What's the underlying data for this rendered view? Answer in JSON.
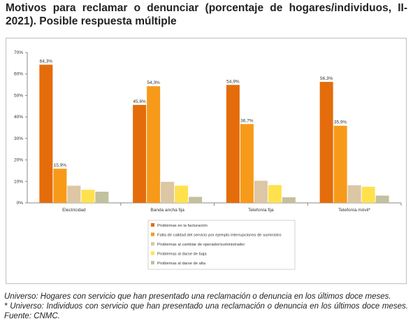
{
  "title": "Motivos para reclamar o denunciar (porcentaje de hogares/individuos, II-2021). Posible respuesta múltiple",
  "notes": {
    "universe": "Universo: Hogares con servicio que han presentado una reclamación o denuncia en los últimos doce meses.",
    "universe_mobile": "* Universo: Individuos con servicio que han presentado una reclamación o denuncia en los últimos doce meses. Fuente: CNMC."
  },
  "chart_data": {
    "type": "bar",
    "title": "",
    "xlabel": "",
    "ylabel": "",
    "ylim": [
      0,
      70
    ],
    "yticks": [
      "0%",
      "10%",
      "20%",
      "30%",
      "40%",
      "50%",
      "60%",
      "70%"
    ],
    "grid": false,
    "legend_position": "bottom",
    "categories": [
      "Electricidad",
      "Banda ancha fija",
      "Telefonía fija",
      "Telefonía móvil*"
    ],
    "series": [
      {
        "name": "Problemas en la facturación",
        "color": "#e46c0a",
        "values": [
          64.3,
          45.6,
          54.9,
          56.3
        ],
        "labels": [
          "64,3%",
          "45,6%",
          "54,9%",
          "56,3%"
        ]
      },
      {
        "name": "Falta de calidad del servicio por ejemplo interrupciones de suministro",
        "color": "#f79a1a",
        "values": [
          15.9,
          54.3,
          36.7,
          35.9
        ],
        "labels": [
          "15,9%",
          "54,3%",
          "36,7%",
          "35,9%"
        ]
      },
      {
        "name": "Problemas al cambiar de operador/suministrador",
        "color": "#dcc6a4",
        "values": [
          8.0,
          9.8,
          10.3,
          8.2
        ],
        "labels": [
          "",
          "",
          "",
          ""
        ]
      },
      {
        "name": "Problemas al darse de baja",
        "color": "#ffe14d",
        "values": [
          6.1,
          8.0,
          8.3,
          7.5
        ],
        "labels": [
          "",
          "",
          "",
          ""
        ]
      },
      {
        "name": "Problemas al darse de alta",
        "color": "#c3c09e",
        "values": [
          5.2,
          2.8,
          2.6,
          3.4
        ],
        "labels": [
          "",
          "",
          "",
          ""
        ]
      }
    ]
  }
}
